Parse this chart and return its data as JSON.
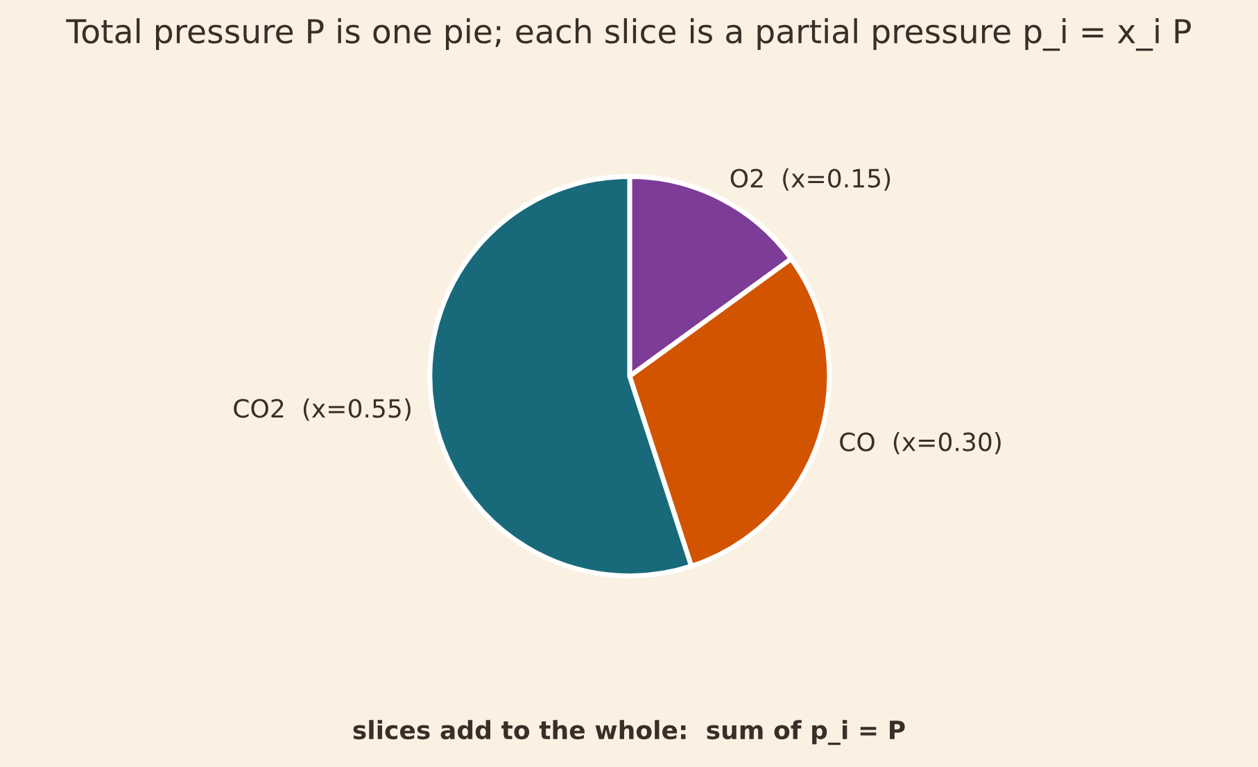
{
  "chart_data": {
    "type": "pie",
    "title": "Total pressure P is one pie; each slice is a partial pressure p_i = x_i P",
    "categories": [
      "O2  (x=0.15)",
      "CO  (x=0.30)",
      "CO2  (x=0.55)"
    ],
    "values": [
      0.15,
      0.3,
      0.55
    ],
    "colors": [
      "#7d3c98",
      "#d35400",
      "#186a7b"
    ],
    "annotations": [
      "slices add to the whole:  sum of p_i = P"
    ]
  }
}
